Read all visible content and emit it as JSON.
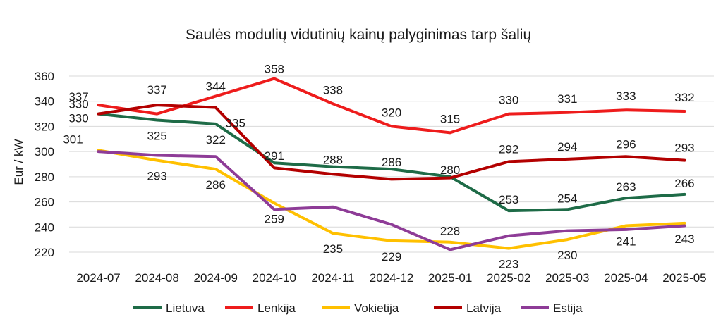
{
  "chart_data": {
    "type": "line",
    "title": "Saulės modulių vidutinių kainų palyginimas tarp šalių",
    "ylabel": "Eur / kW",
    "xlabel": "",
    "ylim": [
      220,
      360
    ],
    "yticks": [
      220,
      240,
      260,
      280,
      300,
      320,
      340,
      360
    ],
    "grid": true,
    "legend_position": "bottom",
    "categories": [
      "2024-07",
      "2024-08",
      "2024-09",
      "2024-10",
      "2024-11",
      "2024-12",
      "2025-01",
      "2025-02",
      "2025-03",
      "2025-04",
      "2025-05"
    ],
    "series": [
      {
        "name": "Lietuva",
        "color": "#1e6b47",
        "values": [
          330,
          325,
          322,
          291,
          288,
          286,
          280,
          253,
          254,
          263,
          266
        ],
        "labels": [
          null,
          325,
          322,
          291,
          288,
          286,
          280,
          253,
          254,
          263,
          266
        ]
      },
      {
        "name": "Lenkija",
        "color": "#ee1c1c",
        "values": [
          337,
          330,
          344,
          358,
          338,
          320,
          315,
          330,
          331,
          333,
          332
        ],
        "labels": [
          337,
          null,
          344,
          358,
          338,
          320,
          315,
          330,
          331,
          333,
          332
        ]
      },
      {
        "name": "Vokietija",
        "color": "#ffc000",
        "values": [
          301,
          293,
          286,
          259,
          235,
          229,
          228,
          223,
          230,
          241,
          243
        ],
        "labels": [
          301,
          293,
          286,
          259,
          235,
          229,
          228,
          223,
          230,
          241,
          243
        ]
      },
      {
        "name": "Latvija",
        "color": "#b30000",
        "values": [
          330,
          337,
          335,
          287,
          282,
          278,
          279,
          292,
          294,
          296,
          293
        ],
        "labels": [
          330,
          337,
          335,
          null,
          null,
          null,
          null,
          292,
          294,
          296,
          293
        ]
      },
      {
        "name": "Estija",
        "color": "#8e3c97",
        "values": [
          300,
          297,
          296,
          254,
          256,
          242,
          222,
          233,
          237,
          238,
          241
        ],
        "labels": [
          null,
          null,
          null,
          null,
          null,
          null,
          null,
          null,
          null,
          null,
          null
        ]
      }
    ]
  }
}
